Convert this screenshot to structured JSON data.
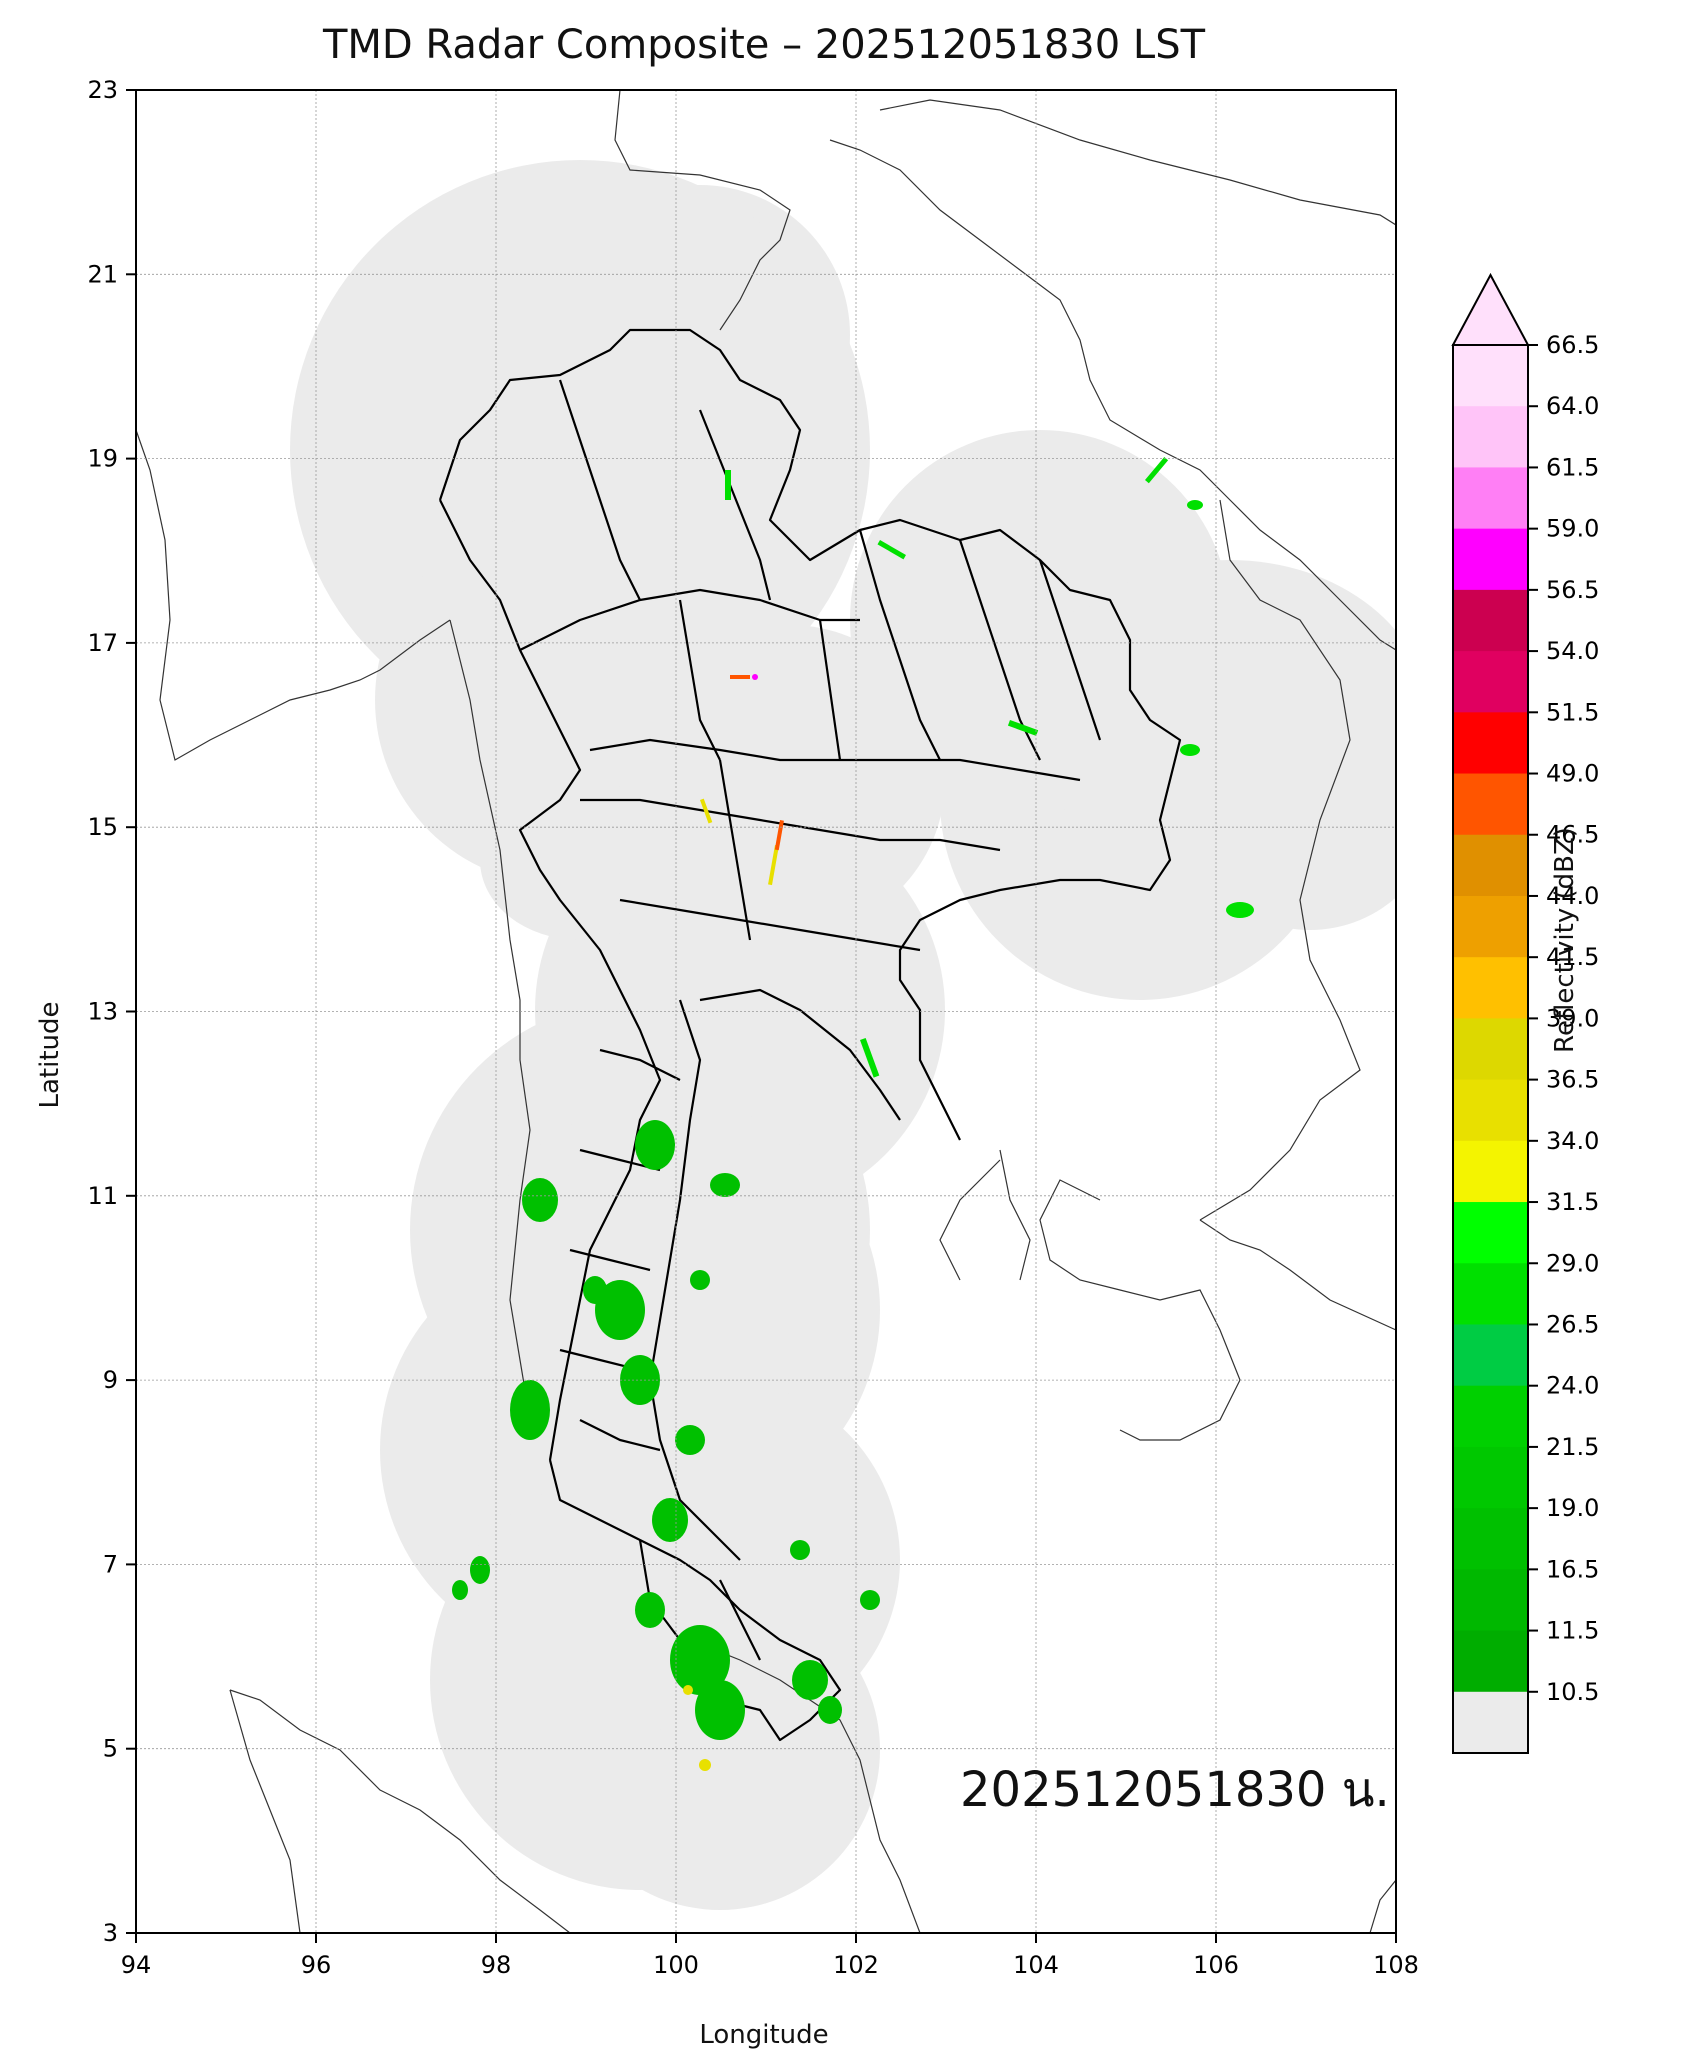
{
  "map": {
    "title": "TMD Radar Composite – 202512051830 LST",
    "x_label": "Longitude",
    "y_label": "Latitude",
    "timestamp_label": "202512051830 น.",
    "lon_ticks": [
      "94",
      "96",
      "98",
      "100",
      "102",
      "104",
      "106",
      "108"
    ],
    "lat_ticks": [
      "23",
      "21",
      "19",
      "17",
      "15",
      "13",
      "11",
      "9",
      "7",
      "5",
      "3"
    ],
    "lon_range": [
      94,
      108
    ],
    "lat_range": [
      3,
      23
    ],
    "grid": true,
    "coverage_color": "#ebebeb"
  },
  "colorbar": {
    "label": "Reflectivity (dBZ)",
    "ticks": [
      "66.5",
      "64.0",
      "61.5",
      "59.0",
      "56.5",
      "54.0",
      "51.5",
      "49.0",
      "46.5",
      "44.0",
      "41.5",
      "39.0",
      "36.5",
      "34.0",
      "31.5",
      "29.0",
      "26.5",
      "24.0",
      "21.5",
      "19.0",
      "16.5",
      "11.5",
      "10.5"
    ],
    "colors": [
      "#ffe0fb",
      "#ffc4f8",
      "#ff7ff5",
      "#ff00ff",
      "#cc0050",
      "#e00060",
      "#ff0000",
      "#ff5500",
      "#e09000",
      "#eea000",
      "#ffc000",
      "#ddd800",
      "#e8e000",
      "#f4f400",
      "#00ff00",
      "#00e000",
      "#00cc44",
      "#00d000",
      "#00c800",
      "#00c000",
      "#00b800",
      "#00ad00",
      "#ebebeb"
    ]
  }
}
